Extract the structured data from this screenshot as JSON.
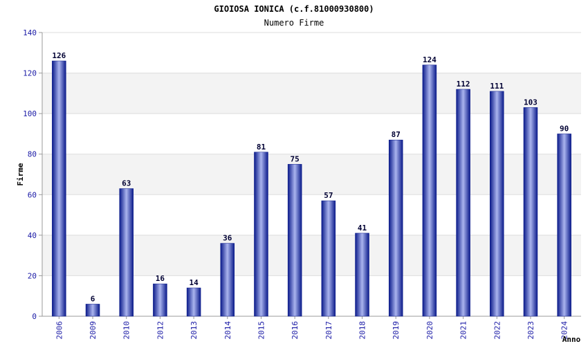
{
  "chart_data": {
    "type": "bar",
    "title": "GIOIOSA IONICA (c.f.81000930800)",
    "subtitle": "Numero Firme",
    "xlabel": "Anno",
    "ylabel": "Firme",
    "ylim": [
      0,
      140
    ],
    "yticks": [
      0,
      20,
      40,
      60,
      80,
      100,
      120,
      140
    ],
    "grid": true,
    "categories": [
      "2006",
      "2009",
      "2010",
      "2012",
      "2013",
      "2014",
      "2015",
      "2016",
      "2017",
      "2018",
      "2019",
      "2020",
      "2021",
      "2022",
      "2023",
      "2024"
    ],
    "values": [
      126,
      6,
      63,
      16,
      14,
      36,
      81,
      75,
      57,
      41,
      87,
      124,
      112,
      111,
      103,
      90
    ],
    "colors": {
      "bar_dark": "#0a1a8a",
      "bar_light": "#aab4ee",
      "band": "#f3f3f3",
      "tick": "#1a1aa6"
    }
  }
}
